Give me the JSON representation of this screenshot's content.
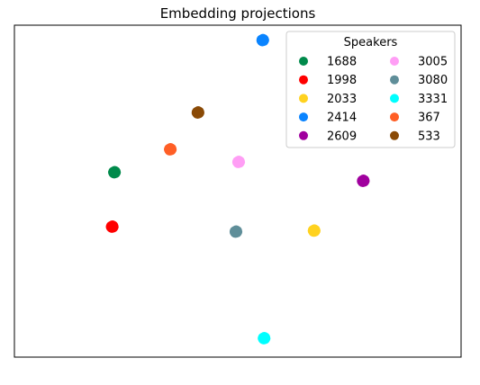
{
  "chart_data": {
    "type": "scatter",
    "title": "Embedding projections",
    "xlabel": "",
    "ylabel": "",
    "xlim": [
      0,
      100
    ],
    "ylim": [
      0,
      100
    ],
    "grid": false,
    "ticks_visible": false,
    "legend": {
      "title": "Speakers",
      "placement": "top-right",
      "columns": 2
    },
    "series": [
      {
        "name": "1688",
        "color": "#008a4b",
        "points": [
          [
            22.4,
            55.7
          ]
        ]
      },
      {
        "name": "1998",
        "color": "#ff0000",
        "points": [
          [
            21.9,
            39.3
          ]
        ]
      },
      {
        "name": "2033",
        "color": "#ffd21f",
        "points": [
          [
            67.1,
            38.1
          ]
        ]
      },
      {
        "name": "2414",
        "color": "#0a84ff",
        "points": [
          [
            55.6,
            95.5
          ]
        ]
      },
      {
        "name": "2609",
        "color": "#a0009e",
        "points": [
          [
            78.1,
            53.1
          ]
        ]
      },
      {
        "name": "3005",
        "color": "#ff9ef5",
        "points": [
          [
            50.2,
            58.8
          ]
        ]
      },
      {
        "name": "3080",
        "color": "#5f8e99",
        "points": [
          [
            49.6,
            37.8
          ]
        ]
      },
      {
        "name": "3331",
        "color": "#00ffff",
        "points": [
          [
            55.9,
            5.7
          ]
        ]
      },
      {
        "name": "367",
        "color": "#ff5f26",
        "points": [
          [
            34.9,
            62.6
          ]
        ]
      },
      {
        "name": "533",
        "color": "#8a4a06",
        "points": [
          [
            41.1,
            73.7
          ]
        ]
      }
    ]
  }
}
